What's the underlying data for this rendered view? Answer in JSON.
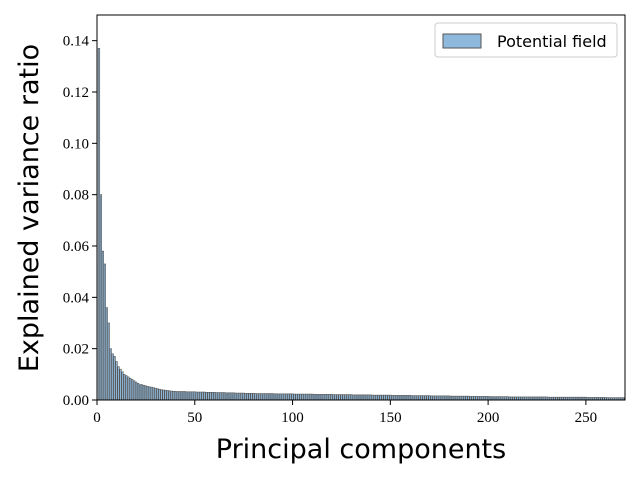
{
  "chart_data": {
    "type": "bar",
    "xlabel": "Principal components",
    "ylabel": "Explained variance ratio",
    "series": [
      {
        "name": "Potential field",
        "color": "#8fb9dc",
        "values": [
          0.137,
          0.08,
          0.058,
          0.053,
          0.036,
          0.03,
          0.02,
          0.018,
          0.017,
          0.015,
          0.013,
          0.012,
          0.011,
          0.01,
          0.0095,
          0.009,
          0.0085,
          0.008,
          0.0075,
          0.007,
          0.0065,
          0.006,
          0.006,
          0.0057,
          0.0055,
          0.0053,
          0.0051,
          0.005,
          0.0048,
          0.0046,
          0.0044,
          0.0042,
          0.004,
          0.0039,
          0.0038,
          0.0037,
          0.0036,
          0.0035,
          0.0034,
          0.0034,
          0.0033,
          0.0033,
          0.0033,
          0.0033,
          0.0033,
          0.0032,
          0.0032,
          0.0032,
          0.0032,
          0.0032,
          0.0031,
          0.0031,
          0.0031,
          0.0031,
          0.0031,
          0.003,
          0.003,
          0.003,
          0.003,
          0.003,
          0.0029,
          0.0029,
          0.0029,
          0.0029,
          0.0029,
          0.0028,
          0.0028,
          0.0028,
          0.0028,
          0.0028,
          0.0027,
          0.0027,
          0.0027,
          0.0027,
          0.0027,
          0.0026,
          0.0026,
          0.0026,
          0.0026,
          0.0026,
          0.0025,
          0.0025,
          0.0025,
          0.0025,
          0.0025,
          0.0025,
          0.0025,
          0.0025,
          0.0025,
          0.0025,
          0.0024,
          0.0024,
          0.0024,
          0.0024,
          0.0024,
          0.0024,
          0.0024,
          0.0024,
          0.0024,
          0.0024,
          0.0023,
          0.0023,
          0.0023,
          0.0023,
          0.0023,
          0.0023,
          0.0023,
          0.0023,
          0.0023,
          0.0023,
          0.0022,
          0.0022,
          0.0022,
          0.0022,
          0.0022,
          0.0022,
          0.0022,
          0.0022,
          0.0022,
          0.0022,
          0.0021,
          0.0021,
          0.0021,
          0.0021,
          0.0021,
          0.0021,
          0.0021,
          0.0021,
          0.0021,
          0.0021,
          0.002,
          0.002,
          0.002,
          0.002,
          0.002,
          0.002,
          0.002,
          0.002,
          0.002,
          0.002,
          0.0019,
          0.0019,
          0.0019,
          0.0019,
          0.0019,
          0.0019,
          0.0019,
          0.0019,
          0.0019,
          0.0019,
          0.0018,
          0.0018,
          0.0018,
          0.0018,
          0.0018,
          0.0018,
          0.0018,
          0.0018,
          0.0018,
          0.0018,
          0.0017,
          0.0017,
          0.0017,
          0.0017,
          0.0017,
          0.0017,
          0.0017,
          0.0017,
          0.0017,
          0.0017,
          0.0016,
          0.0016,
          0.0016,
          0.0016,
          0.0016,
          0.0016,
          0.0016,
          0.0016,
          0.0016,
          0.0016,
          0.0015,
          0.0015,
          0.0015,
          0.0015,
          0.0015,
          0.0015,
          0.0015,
          0.0015,
          0.0015,
          0.0015,
          0.0014,
          0.0014,
          0.0014,
          0.0014,
          0.0014,
          0.0014,
          0.0014,
          0.0014,
          0.0014,
          0.0014,
          0.0013,
          0.0013,
          0.0013,
          0.0013,
          0.0013,
          0.0013,
          0.0013,
          0.0013,
          0.0013,
          0.0013,
          0.0012,
          0.0012,
          0.0012,
          0.0012,
          0.0012,
          0.0012,
          0.0012,
          0.0012,
          0.0012,
          0.0012,
          0.0012,
          0.0012,
          0.0012,
          0.0012,
          0.0012,
          0.0012,
          0.0012,
          0.0012,
          0.0012,
          0.0012,
          0.0011,
          0.0011,
          0.0011,
          0.0011,
          0.0011,
          0.0011,
          0.0011,
          0.0011,
          0.0011,
          0.0011,
          0.0011,
          0.0011,
          0.0011,
          0.0011,
          0.0011,
          0.0011,
          0.0011,
          0.0011,
          0.0011,
          0.0011,
          0.001,
          0.001,
          0.001,
          0.001,
          0.001,
          0.001,
          0.001,
          0.001,
          0.001,
          0.001,
          0.0009,
          0.0009,
          0.0009,
          0.0009,
          0.0009,
          0.0009,
          0.0009,
          0.0009,
          0.0009,
          0.0009
        ]
      }
    ],
    "x": [
      1,
      2,
      3,
      4,
      5,
      6,
      7,
      8,
      9,
      10,
      11,
      12,
      13,
      14,
      15,
      16,
      17,
      18,
      19,
      20,
      21,
      22,
      23,
      24,
      25,
      26,
      27,
      28,
      29,
      30,
      31,
      32,
      33,
      34,
      35,
      36,
      37,
      38,
      39,
      40,
      41,
      42,
      43,
      44,
      45,
      46,
      47,
      48,
      49,
      50,
      51,
      52,
      53,
      54,
      55,
      56,
      57,
      58,
      59,
      60,
      61,
      62,
      63,
      64,
      65,
      66,
      67,
      68,
      69,
      70,
      71,
      72,
      73,
      74,
      75,
      76,
      77,
      78,
      79,
      80,
      81,
      82,
      83,
      84,
      85,
      86,
      87,
      88,
      89,
      90,
      91,
      92,
      93,
      94,
      95,
      96,
      97,
      98,
      99,
      100,
      101,
      102,
      103,
      104,
      105,
      106,
      107,
      108,
      109,
      110,
      111,
      112,
      113,
      114,
      115,
      116,
      117,
      118,
      119,
      120,
      121,
      122,
      123,
      124,
      125,
      126,
      127,
      128,
      129,
      130,
      131,
      132,
      133,
      134,
      135,
      136,
      137,
      138,
      139,
      140,
      141,
      142,
      143,
      144,
      145,
      146,
      147,
      148,
      149,
      150,
      151,
      152,
      153,
      154,
      155,
      156,
      157,
      158,
      159,
      160,
      161,
      162,
      163,
      164,
      165,
      166,
      167,
      168,
      169,
      170,
      171,
      172,
      173,
      174,
      175,
      176,
      177,
      178,
      179,
      180,
      181,
      182,
      183,
      184,
      185,
      186,
      187,
      188,
      189,
      190,
      191,
      192,
      193,
      194,
      195,
      196,
      197,
      198,
      199,
      200,
      201,
      202,
      203,
      204,
      205,
      206,
      207,
      208,
      209,
      210,
      211,
      212,
      213,
      214,
      215,
      216,
      217,
      218,
      219,
      220,
      221,
      222,
      223,
      224,
      225,
      226,
      227,
      228,
      229,
      230,
      231,
      232,
      233,
      234,
      235,
      236,
      237,
      238,
      239,
      240,
      241,
      242,
      243,
      244,
      245,
      246,
      247,
      248,
      249,
      250,
      251,
      252,
      253,
      254,
      255,
      256,
      257,
      258,
      259,
      260,
      261,
      262,
      263,
      264,
      265,
      266,
      267,
      268,
      269,
      270
    ],
    "edgecolor": "#555555",
    "xlim": [
      0,
      270
    ],
    "xticks": [
      0,
      50,
      100,
      150,
      200,
      250
    ],
    "ylim": [
      0,
      0.15
    ],
    "yticks": [
      {
        "value": 0,
        "label": "0.00"
      },
      {
        "value": 0.02,
        "label": "0.02"
      },
      {
        "value": 0.04,
        "label": "0.04"
      },
      {
        "value": 0.06,
        "label": "0.06"
      },
      {
        "value": 0.08,
        "label": "0.08"
      },
      {
        "value": 0.1,
        "label": "0.10"
      },
      {
        "value": 0.12,
        "label": "0.12"
      },
      {
        "value": 0.14,
        "label": "0.14"
      }
    ],
    "grid": false,
    "legend": "upper right"
  }
}
